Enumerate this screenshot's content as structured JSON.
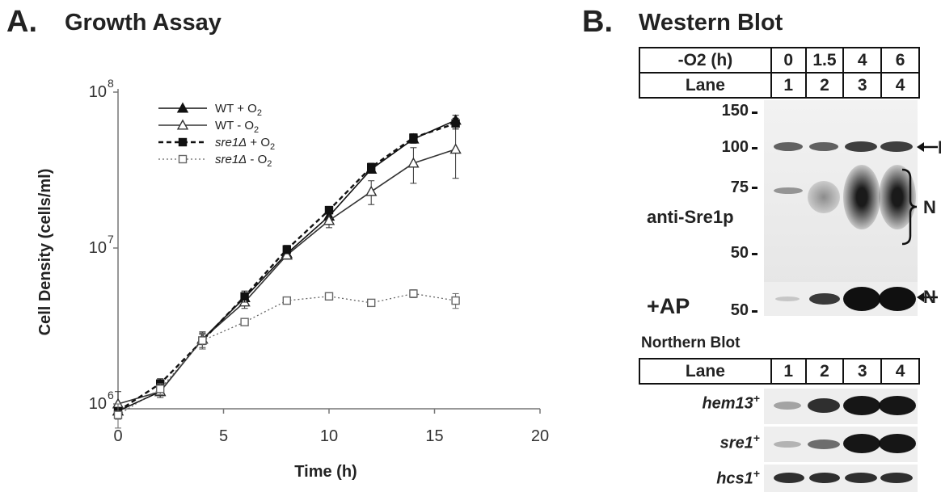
{
  "panel_a": {
    "letter": "A.",
    "title": "Growth Assay"
  },
  "panel_b": {
    "letter": "B.",
    "title": "Western Blot",
    "western_header": {
      "row1_label": "-O2 (h)",
      "row1_values": [
        "0",
        "1.5",
        "4",
        "6"
      ],
      "row2_label": "Lane",
      "row2_values": [
        "1",
        "2",
        "3",
        "4"
      ]
    },
    "mw_markers": [
      "150",
      "100",
      "75",
      "50"
    ],
    "antibody_label": "anti-Sre1p",
    "band_labels": {
      "p": "P",
      "n": "N",
      "n_ap": "N"
    },
    "ap_label": "+AP",
    "ap_mw_marker": "50",
    "northern_title": "Northern Blot",
    "northern_header": {
      "label": "Lane",
      "values": [
        "1",
        "2",
        "3",
        "4"
      ]
    },
    "northern_genes": [
      {
        "name": "hem13",
        "sup": "+"
      },
      {
        "name": "sre1",
        "sup": "+"
      },
      {
        "name": "hcs1",
        "sup": "+"
      }
    ]
  },
  "chart_data": {
    "type": "line",
    "title": "Growth Assay",
    "xlabel": "Time (h)",
    "ylabel": "Cell Density (cells/ml)",
    "x_scale": "linear",
    "y_scale": "log",
    "xlim": [
      0,
      20
    ],
    "ylim": [
      1000000,
      100000000
    ],
    "x_ticks": [
      0,
      5,
      10,
      15,
      20
    ],
    "y_ticks": [
      {
        "value": 1000000,
        "base": "10",
        "exp": "6"
      },
      {
        "value": 10000000,
        "base": "10",
        "exp": "7"
      },
      {
        "value": 100000000,
        "base": "10",
        "exp": "8"
      }
    ],
    "grid": false,
    "legend_position": "top-center",
    "x": [
      0,
      2,
      4,
      6,
      8,
      10,
      12,
      14,
      16
    ],
    "series": [
      {
        "name": "WT + O2",
        "legend_parts": [
          "WT + O",
          "2"
        ],
        "marker": "filled-triangle",
        "line": "solid",
        "values": [
          900000,
          1200000,
          2600000,
          4800000,
          9200000,
          16000000,
          32000000,
          50000000,
          66000000
        ],
        "error": [
          80000,
          100000,
          200000,
          300000,
          500000,
          800000,
          1500000,
          3000000,
          5000000
        ]
      },
      {
        "name": "WT - O2",
        "legend_parts": [
          "WT - O",
          "2"
        ],
        "marker": "open-triangle",
        "line": "solid",
        "values": [
          1000000,
          1200000,
          2600000,
          4500000,
          9000000,
          15000000,
          23000000,
          35000000,
          43000000
        ],
        "error": [
          200000,
          100000,
          300000,
          400000,
          500000,
          1500000,
          4000000,
          9000000,
          15000000
        ]
      },
      {
        "name": "sre1Δ + O2",
        "legend_parts": [
          "sre1Δ",
          " + O",
          "2"
        ],
        "marker": "filled-square",
        "line": "dashed",
        "values": [
          900000,
          1350000,
          2550000,
          4900000,
          9800000,
          17500000,
          33000000,
          51000000,
          63000000
        ],
        "error": [
          100000,
          100000,
          300000,
          400000,
          600000,
          1000000,
          2000000,
          3000000,
          5000000
        ]
      },
      {
        "name": "sre1Δ - O2",
        "legend_parts": [
          "sre1Δ",
          " - O",
          "2"
        ],
        "marker": "open-square",
        "line": "dotted",
        "values": [
          850000,
          1250000,
          2550000,
          3350000,
          4600000,
          4900000,
          4450000,
          5100000,
          4600000
        ],
        "error": [
          150000,
          100000,
          300000,
          150000,
          200000,
          250000,
          200000,
          300000,
          500000
        ]
      }
    ]
  }
}
